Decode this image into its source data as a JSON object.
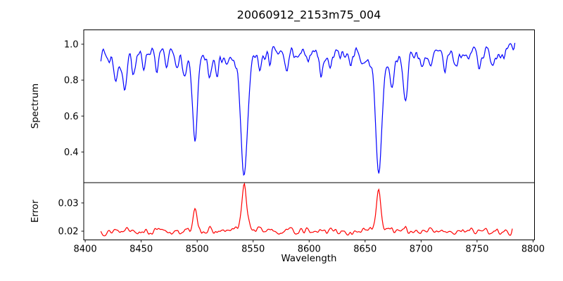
{
  "title": "20060912_2153m75_004",
  "chart_data": [
    {
      "type": "line",
      "name": "spectrum",
      "ylabel": "Spectrum",
      "color": "#0000ff",
      "ylim": [
        0.229,
        1.08
      ],
      "yticks": [
        "0.4",
        "0.6",
        "0.8",
        "1.0"
      ],
      "x_start": 8414,
      "x_end": 8784,
      "x_step": 0.75,
      "continuum": 0.97,
      "noise_amplitude": 0.013,
      "absorption_lines": [
        {
          "center": 8421,
          "depth": 0.05,
          "width": 1.2
        },
        {
          "center": 8427.5,
          "depth": 0.16,
          "width": 1.6
        },
        {
          "center": 8435.5,
          "depth": 0.21,
          "width": 1.8
        },
        {
          "center": 8443,
          "depth": 0.1,
          "width": 1.4
        },
        {
          "center": 8452,
          "depth": 0.08,
          "width": 1.3
        },
        {
          "center": 8464,
          "depth": 0.12,
          "width": 1.6
        },
        {
          "center": 8473,
          "depth": 0.07,
          "width": 1.2
        },
        {
          "center": 8481,
          "depth": 0.06,
          "width": 1.2
        },
        {
          "center": 8489,
          "depth": 0.13,
          "width": 1.5
        },
        {
          "center": 8498,
          "depth": 0.49,
          "width": 2.2
        },
        {
          "center": 8511,
          "depth": 0.13,
          "width": 1.5
        },
        {
          "center": 8518,
          "depth": 0.08,
          "width": 1.2
        },
        {
          "center": 8527,
          "depth": 0.06,
          "width": 1.2
        },
        {
          "center": 8542,
          "depth": 0.7,
          "width": 2.8
        },
        {
          "center": 8556,
          "depth": 0.08,
          "width": 1.3
        },
        {
          "center": 8565,
          "depth": 0.05,
          "width": 1.2
        },
        {
          "center": 8580,
          "depth": 0.1,
          "width": 1.5
        },
        {
          "center": 8590,
          "depth": 0.06,
          "width": 1.2
        },
        {
          "center": 8598,
          "depth": 0.07,
          "width": 1.3
        },
        {
          "center": 8611,
          "depth": 0.12,
          "width": 1.6
        },
        {
          "center": 8619,
          "depth": 0.09,
          "width": 1.3
        },
        {
          "center": 8637,
          "depth": 0.06,
          "width": 1.2
        },
        {
          "center": 8648,
          "depth": 0.06,
          "width": 1.2
        },
        {
          "center": 8662,
          "depth": 0.69,
          "width": 2.6
        },
        {
          "center": 8674,
          "depth": 0.17,
          "width": 1.6
        },
        {
          "center": 8686,
          "depth": 0.26,
          "width": 1.9
        },
        {
          "center": 8701,
          "depth": 0.09,
          "width": 1.4
        },
        {
          "center": 8709,
          "depth": 0.1,
          "width": 1.4
        },
        {
          "center": 8721,
          "depth": 0.1,
          "width": 1.5
        },
        {
          "center": 8731,
          "depth": 0.09,
          "width": 1.4
        },
        {
          "center": 8742,
          "depth": 0.07,
          "width": 1.3
        },
        {
          "center": 8752,
          "depth": 0.08,
          "width": 1.3
        },
        {
          "center": 8764,
          "depth": 0.07,
          "width": 1.3
        },
        {
          "center": 8774,
          "depth": 0.06,
          "width": 1.2
        }
      ]
    },
    {
      "type": "line",
      "name": "error",
      "ylabel": "Error",
      "xlabel": "Wavelength",
      "color": "#ff0000",
      "ylim": [
        0.0169,
        0.0372
      ],
      "yticks": [
        "0.02",
        "0.03"
      ],
      "xlim": [
        8398.7,
        8801.3
      ],
      "xticks": [
        "8400",
        "8450",
        "8500",
        "8550",
        "8600",
        "8650",
        "8700",
        "8750",
        "8800"
      ],
      "x_start": 8414,
      "x_end": 8782,
      "x_step": 0.75,
      "baseline": 0.0196,
      "noise_amplitude": 0.00035,
      "error_peaks": [
        {
          "center": 8427,
          "height": 0.0012,
          "width": 1.6
        },
        {
          "center": 8436,
          "height": 0.0016,
          "width": 1.8
        },
        {
          "center": 8443,
          "height": 0.001,
          "width": 1.4
        },
        {
          "center": 8452,
          "height": 0.0007,
          "width": 1.3
        },
        {
          "center": 8464,
          "height": 0.0008,
          "width": 1.5
        },
        {
          "center": 8489,
          "height": 0.0007,
          "width": 1.4
        },
        {
          "center": 8498,
          "height": 0.0074,
          "width": 1.6
        },
        {
          "center": 8511,
          "height": 0.0008,
          "width": 1.4
        },
        {
          "center": 8542,
          "height": 0.0168,
          "width": 2.0
        },
        {
          "center": 8556,
          "height": 0.0014,
          "width": 1.3
        },
        {
          "center": 8568,
          "height": 0.0007,
          "width": 1.2
        },
        {
          "center": 8580,
          "height": 0.0018,
          "width": 1.4
        },
        {
          "center": 8598,
          "height": 0.0007,
          "width": 1.3
        },
        {
          "center": 8611,
          "height": 0.0011,
          "width": 1.4
        },
        {
          "center": 8620,
          "height": 0.0012,
          "width": 1.3
        },
        {
          "center": 8662,
          "height": 0.0157,
          "width": 1.8
        },
        {
          "center": 8674,
          "height": 0.001,
          "width": 1.4
        },
        {
          "center": 8686,
          "height": 0.0016,
          "width": 1.6
        },
        {
          "center": 8709,
          "height": 0.0007,
          "width": 1.3
        },
        {
          "center": 8721,
          "height": 0.0008,
          "width": 1.3
        },
        {
          "center": 8733,
          "height": 0.0008,
          "width": 1.3
        },
        {
          "center": 8745,
          "height": 0.0009,
          "width": 1.3
        },
        {
          "center": 8757,
          "height": 0.0014,
          "width": 1.3
        },
        {
          "center": 8768,
          "height": 0.001,
          "width": 1.2
        }
      ]
    }
  ]
}
